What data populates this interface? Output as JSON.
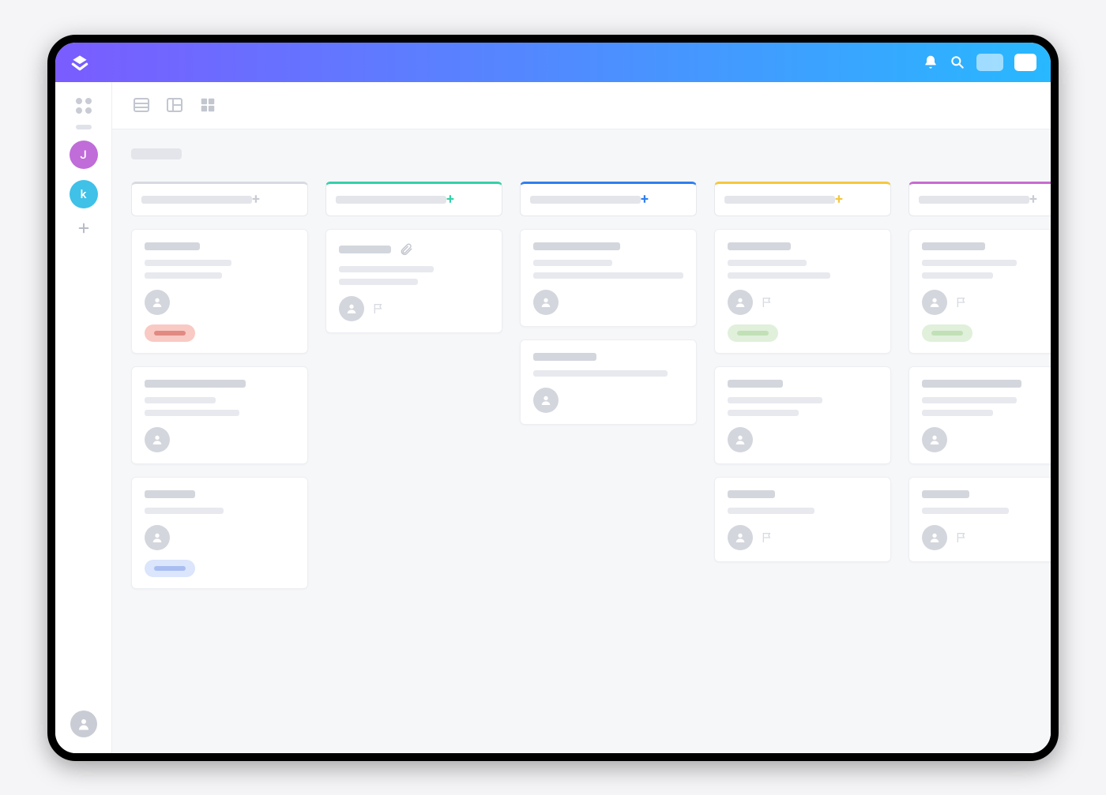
{
  "theme": {
    "gradient_start": "#7a5cff",
    "gradient_end": "#28b8ff"
  },
  "sidebar": {
    "users": [
      {
        "initial": "J",
        "color": "#c06cd9"
      },
      {
        "initial": "k",
        "color": "#3fc1e8"
      }
    ]
  },
  "toolbar": {
    "views": [
      "list",
      "board",
      "box"
    ]
  },
  "board": {
    "columns": [
      {
        "accent": "#d7dae1",
        "add_color": "#c9ccd4",
        "cards": [
          {
            "title_w": 70,
            "lines": [
              110,
              98
            ],
            "flag": false,
            "attach": false,
            "tag": {
              "bg": "#f9c9c4",
              "fg": "#e08a82"
            }
          },
          {
            "title_w": 128,
            "lines": [
              90,
              120
            ],
            "flag": false,
            "attach": false
          },
          {
            "title_w": 64,
            "lines": [
              100
            ],
            "flag": false,
            "attach": false,
            "tag": {
              "bg": "#dbe5fb",
              "fg": "#a9bdf0"
            }
          }
        ]
      },
      {
        "accent": "#34d1a8",
        "add_color": "#34d1a8",
        "cards": [
          {
            "title_w": 66,
            "lines": [
              120,
              100
            ],
            "flag": true,
            "attach": true
          }
        ]
      },
      {
        "accent": "#2f7ff0",
        "add_color": "#2f7ff0",
        "cards": [
          {
            "title_w": 110,
            "lines": [
              100,
              190
            ],
            "flag": false,
            "attach": false
          },
          {
            "title_w": 80,
            "lines": [
              170
            ],
            "flag": false,
            "attach": false
          }
        ]
      },
      {
        "accent": "#f5c73d",
        "add_color": "#f5c73d",
        "cards": [
          {
            "title_w": 80,
            "lines": [
              100,
              130
            ],
            "flag": true,
            "attach": false,
            "tag": {
              "bg": "#e0f0db",
              "fg": "#c1e0b6"
            }
          },
          {
            "title_w": 70,
            "lines": [
              120,
              90
            ],
            "flag": false,
            "attach": false
          },
          {
            "title_w": 60,
            "lines": [
              110
            ],
            "flag": true,
            "attach": false
          }
        ]
      },
      {
        "accent": "#c96bd0",
        "add_color": "#c9ccd4",
        "cards": [
          {
            "title_w": 80,
            "lines": [
              120,
              90
            ],
            "flag": true,
            "attach": false,
            "tag": {
              "bg": "#e0f0db",
              "fg": "#c1e0b6"
            }
          },
          {
            "title_w": 126,
            "lines": [
              120,
              90
            ],
            "flag": false,
            "attach": false
          },
          {
            "title_w": 60,
            "lines": [
              110
            ],
            "flag": true,
            "attach": false
          }
        ]
      }
    ]
  }
}
